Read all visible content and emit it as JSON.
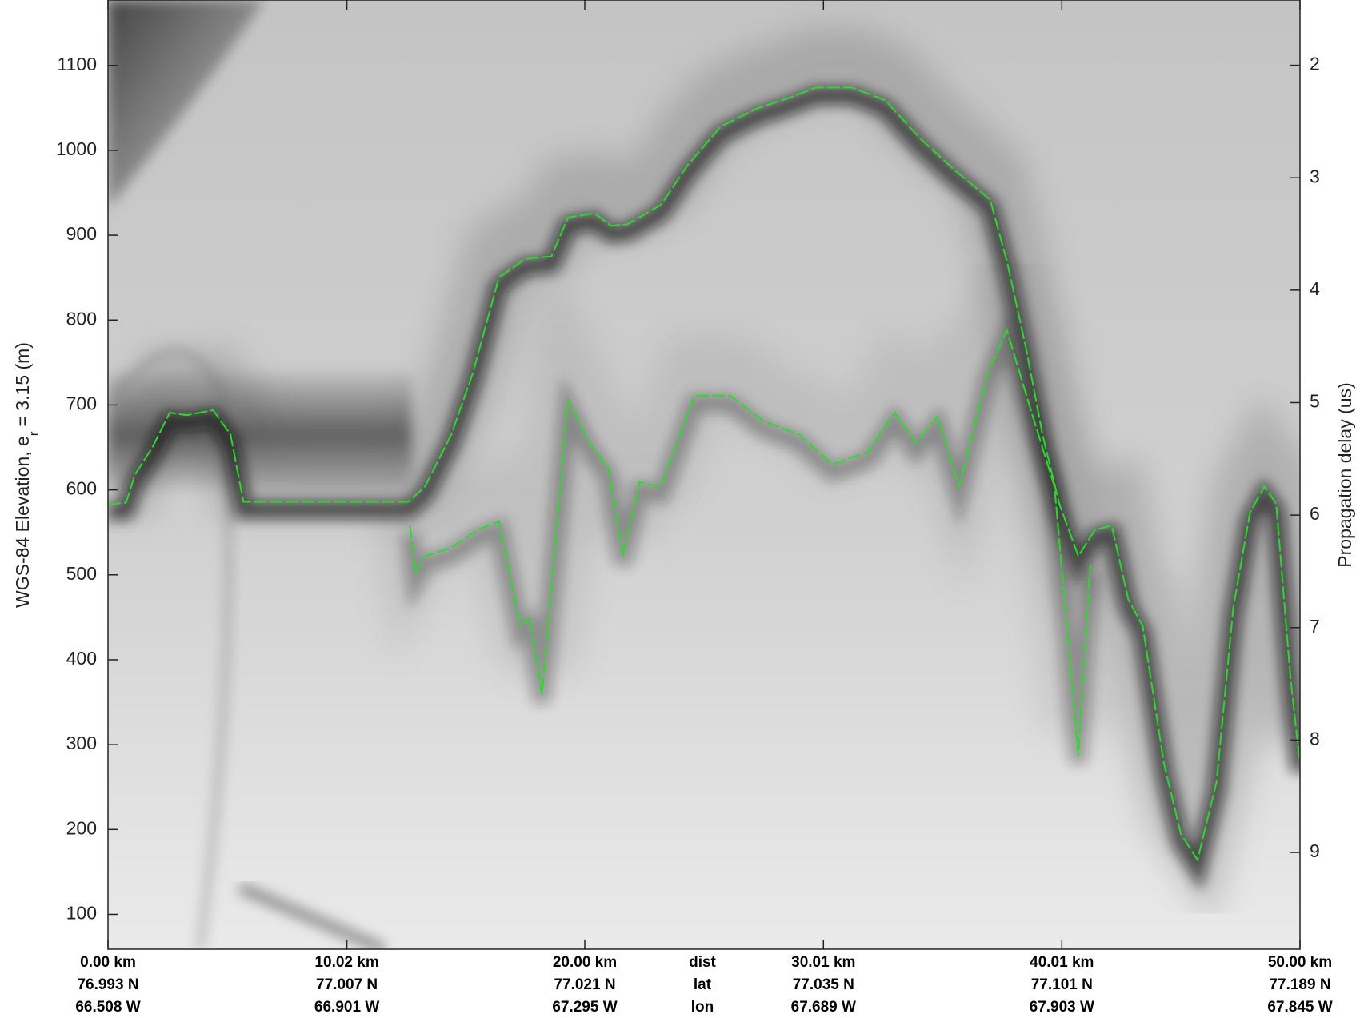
{
  "chart_data": {
    "type": "line",
    "ylabel": "WGS-84 Elevation, e",
    "ylabel_sub": "r",
    "ylabel_tail": "= 3.15 (m)",
    "y2label": "Propagation delay (us)",
    "xlim": [
      0,
      50
    ],
    "ylim": [
      59,
      1177
    ],
    "yticks": [
      100,
      200,
      300,
      400,
      500,
      600,
      700,
      800,
      900,
      1000,
      1100
    ],
    "y2lim": [
      9.86,
      1.42
    ],
    "y2ticks": [
      2,
      3,
      4,
      5,
      6,
      7,
      8,
      9
    ],
    "xticks": [
      {
        "value": 0,
        "label": "0.00 km"
      },
      {
        "value": 10.02,
        "label": "10.02 km"
      },
      {
        "value": 20.0,
        "label": "20.00 km"
      },
      {
        "value": 30.01,
        "label": "30.01 km"
      },
      {
        "value": 40.01,
        "label": "40.01 km"
      },
      {
        "value": 50.0,
        "label": "50.00 km"
      }
    ],
    "lat_labels": [
      "76.993 N",
      "77.007 N",
      "77.021 N",
      "77.035 N",
      "77.101 N",
      "77.189 N"
    ],
    "lon_labels": [
      "66.508 W",
      "66.901 W",
      "67.295 W",
      "67.689 W",
      "67.903 W",
      "67.845 W"
    ],
    "row_labels": [
      "dist",
      "lat",
      "lon"
    ],
    "series": [
      {
        "color": "#22e022",
        "x": [
          0,
          0.76,
          1.13,
          1.86,
          2.59,
          3.31,
          4.41,
          5.14,
          5.68,
          6.41,
          12.6,
          13.3,
          14.4,
          15.3,
          16.4,
          17.5,
          18.6,
          19.3,
          20.4,
          21.1,
          21.8,
          23.2,
          24.3,
          25.7,
          27.2,
          28.6,
          29.7,
          31.2,
          32.6,
          34.1,
          35.5,
          37.0,
          37.7,
          38.5,
          39.2,
          39.9,
          40.7,
          41.4,
          42.1,
          42.8,
          43.4,
          44.3,
          45.0,
          45.7,
          46.5,
          47.2,
          47.9,
          48.5,
          49.0,
          49.6,
          50.0
        ],
        "values": [
          583,
          585,
          618,
          650,
          691,
          688,
          694,
          665,
          586,
          586,
          586,
          604,
          665,
          737,
          850,
          872,
          875,
          921,
          926,
          911,
          913,
          936,
          982,
          1028,
          1049,
          1062,
          1074,
          1074,
          1059,
          1013,
          977,
          942,
          870,
          768,
          665,
          584,
          522,
          553,
          558,
          471,
          440,
          277,
          195,
          164,
          256,
          461,
          573,
          604,
          584,
          379,
          277
        ]
      },
      {
        "color": "#22e022",
        "x": [
          12.67,
          12.9,
          13.3,
          14.4,
          15.5,
          16.4,
          17.3,
          17.7,
          18.2,
          19.3,
          20.2,
          21.0,
          21.6,
          22.3,
          23.2,
          24.6,
          26.1,
          27.5,
          29.0,
          30.4,
          31.9,
          33.0,
          33.9,
          34.8,
          35.7,
          36.9,
          37.7,
          38.8,
          39.7,
          40.7,
          41.2
        ],
        "values": [
          558,
          502,
          522,
          532,
          553,
          563,
          440,
          450,
          359,
          706,
          655,
          625,
          522,
          609,
          604,
          711,
          711,
          681,
          665,
          630,
          645,
          691,
          655,
          686,
          604,
          737,
          788,
          686,
          604,
          287,
          512
        ]
      }
    ]
  }
}
